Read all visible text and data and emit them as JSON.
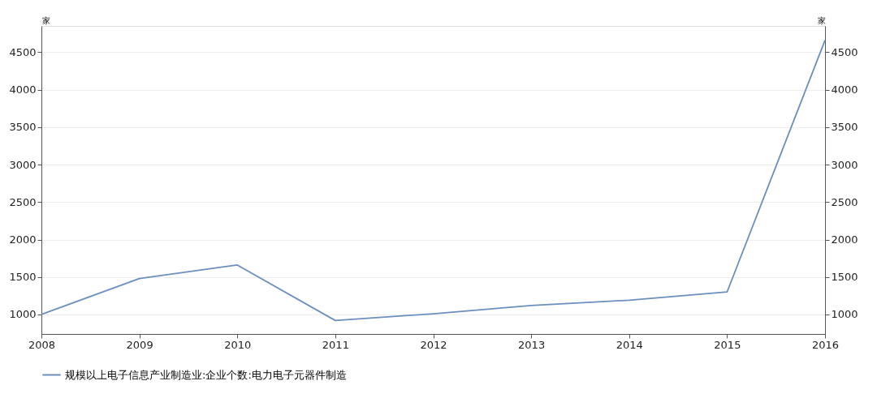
{
  "chart_data": {
    "type": "line",
    "ylabel": "家",
    "y2label": "家",
    "x": [
      2008,
      2009,
      2010,
      2011,
      2012,
      2013,
      2014,
      2015,
      2016
    ],
    "xlim": [
      2008,
      2016
    ],
    "xticks": [
      2008,
      2009,
      2010,
      2011,
      2012,
      2013,
      2014,
      2015,
      2016
    ],
    "ylim": [
      740,
      4850
    ],
    "yticks": [
      1000,
      1500,
      2000,
      2500,
      3000,
      3500,
      4000,
      4500
    ],
    "y2lim": [
      740,
      4850
    ],
    "y2ticks": [
      1000,
      1500,
      2000,
      2500,
      3000,
      3500,
      4000,
      4500
    ],
    "series": [
      {
        "name": "规模以上电子信息产业制造业:企业个数:电力电子元器件制造",
        "color": "#6a8fbf",
        "values": [
          1000,
          1480,
          1660,
          920,
          1010,
          1120,
          1190,
          1300,
          4660
        ]
      }
    ],
    "grid": "y",
    "legend": "bottom",
    "marker": "none",
    "line_style": "solid"
  }
}
